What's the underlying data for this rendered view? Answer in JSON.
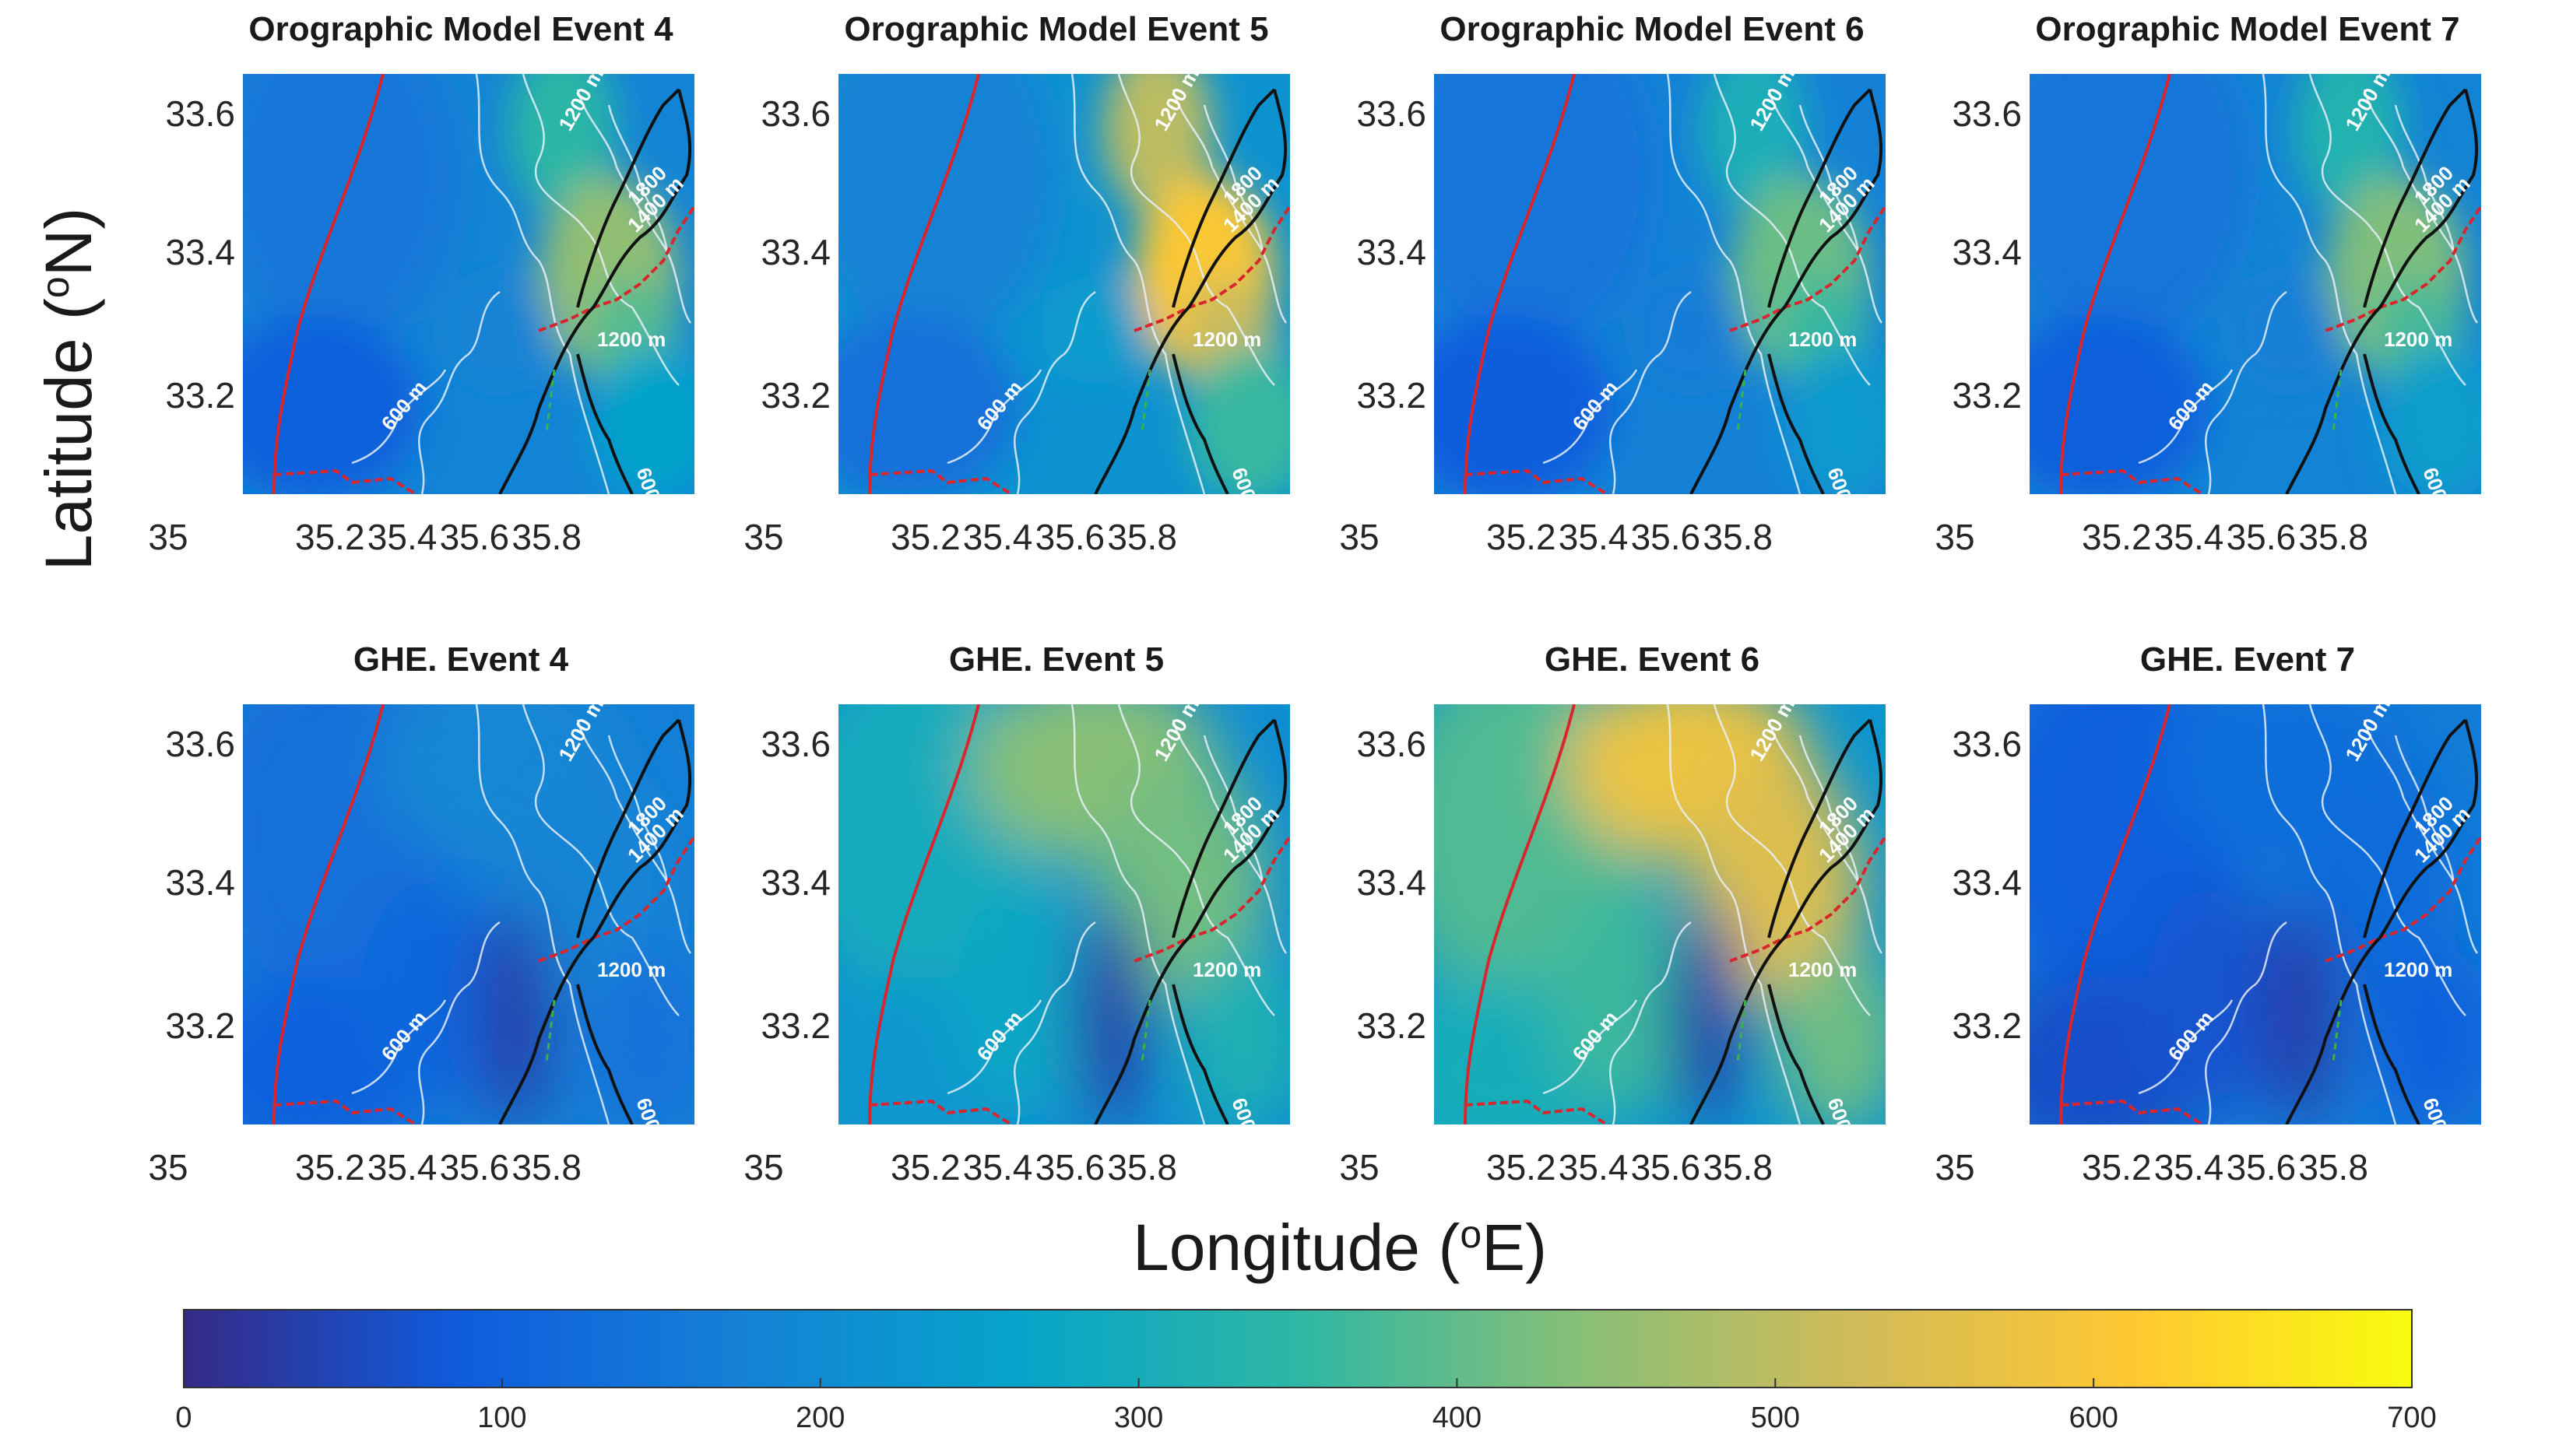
{
  "figure": {
    "ylabel": "Latitude (",
    "ylabel_sup": "o",
    "ylabel_tail": "N)",
    "xlabel": "Longitude (",
    "xlabel_sup": "o",
    "xlabel_tail": "E)"
  },
  "panels": [
    {
      "title": "Orographic Model Event 4",
      "intensity": 0.35,
      "scheme": "oro"
    },
    {
      "title": "Orographic Model Event 5",
      "intensity": 0.75,
      "scheme": "oro"
    },
    {
      "title": "Orographic Model Event 6",
      "intensity": 0.25,
      "scheme": "oro"
    },
    {
      "title": "Orographic Model Event 7",
      "intensity": 0.3,
      "scheme": "oro"
    },
    {
      "title": "GHE. Event 4",
      "intensity": 0.2,
      "scheme": "ghe"
    },
    {
      "title": "GHE. Event 5",
      "intensity": 0.62,
      "scheme": "ghe"
    },
    {
      "title": "GHE. Event 6",
      "intensity": 0.85,
      "scheme": "ghe"
    },
    {
      "title": "GHE. Event 7",
      "intensity": 0.1,
      "scheme": "ghe"
    }
  ],
  "yticks": [
    "33.6",
    "33.4",
    "33.2"
  ],
  "xticks": [
    "35",
    "35.2",
    "35.4",
    "35.6",
    "35.8"
  ],
  "contour_labels": [
    "1200 m",
    "1800",
    "1400 m",
    "1200 m",
    "600 m",
    "600"
  ],
  "colorbar": {
    "ticks": [
      "0",
      "100",
      "200",
      "300",
      "400",
      "500",
      "600",
      "700"
    ],
    "range": [
      0,
      700
    ],
    "colormap": [
      "#352a87",
      "#0f5cdd",
      "#1481d6",
      "#06a4ca",
      "#2eb7a4",
      "#87bf77",
      "#d1bb59",
      "#fec832",
      "#f9fb0e"
    ]
  },
  "chart_data": {
    "type": "heatmap",
    "panels": [
      "Orographic Model Event 4",
      "Orographic Model Event 5",
      "Orographic Model Event 6",
      "Orographic Model Event 7",
      "GHE. Event 4",
      "GHE. Event 5",
      "GHE. Event 6",
      "GHE. Event 7"
    ],
    "xlim": [
      35.0,
      35.9
    ],
    "ylim": [
      33.05,
      33.65
    ],
    "clim": [
      0,
      700
    ]
  }
}
